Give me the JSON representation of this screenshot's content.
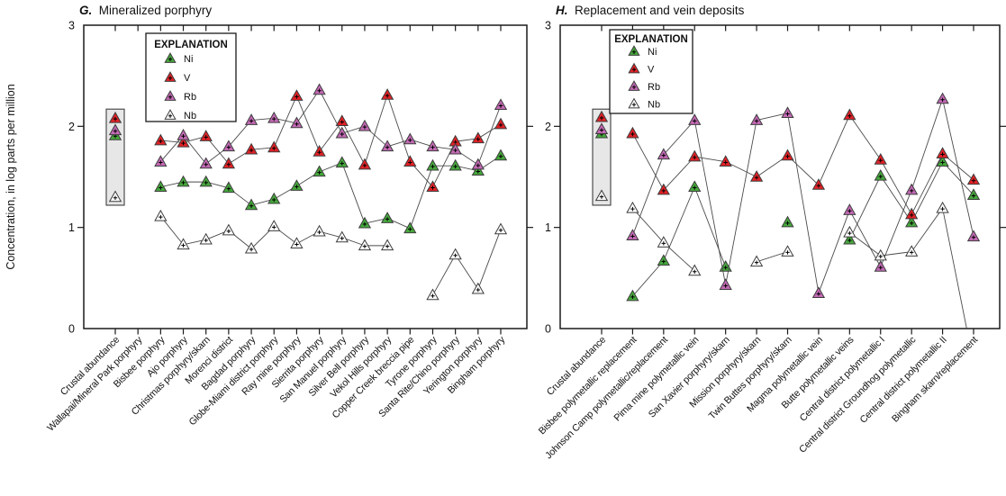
{
  "figure": {
    "y_axis_label": "Concentration, in log parts per million",
    "legend_title": "EXPLANATION",
    "line_color": "#4a4a4a",
    "marker_stroke": "#3c3c3c",
    "axis_color": "#1a1a1a",
    "reference_box_fill": "#e7e7e7",
    "reference_box_stroke": "#4d4d4d"
  },
  "chart_data": [
    {
      "type": "line",
      "panel_letter": "G.",
      "title": "Mineralized porphyry",
      "ylabel": "Concentration, in log parts per million",
      "ylim": [
        0,
        3
      ],
      "yticks": [
        0,
        1,
        2,
        3
      ],
      "grid": false,
      "legend_title": "EXPLANATION",
      "legend_position": "upper-left-inside",
      "reference_box": {
        "category_index": 0,
        "from": 1.22,
        "to": 2.17
      },
      "categories": [
        "Crustal abundance",
        "Wallapai/Mineral Park porphyry",
        "Bisbee porphyry",
        "Ajo porphyry",
        "Christmas porphyry/skarn",
        "Morenci district",
        "Bagdad porphyry",
        "Globe-Miami district porphyry",
        "Ray mine porphyry",
        "Sierrita porphyry",
        "San Manuel porphyry",
        "Silver Bell porphyry",
        "Vekol Hills porphyry",
        "Copper Creek breccia pipe",
        "Tyrone porphyry",
        "Santa Rite/Chino porphyry",
        "Yerington porphyry",
        "Bingham porphyry"
      ],
      "series": [
        {
          "name": "Ni",
          "color": "#46a83c",
          "values": [
            1.91,
            null,
            1.4,
            1.45,
            1.45,
            1.39,
            1.22,
            1.28,
            1.41,
            1.55,
            1.64,
            1.04,
            1.09,
            0.99,
            1.61,
            1.61,
            1.56,
            1.71
          ]
        },
        {
          "name": "V",
          "color": "#e22126",
          "values": [
            2.08,
            null,
            1.86,
            1.84,
            1.9,
            1.63,
            1.77,
            1.79,
            2.3,
            1.75,
            2.05,
            1.62,
            2.31,
            1.65,
            1.4,
            1.85,
            1.88,
            2.02
          ]
        },
        {
          "name": "Rb",
          "color": "#c369b4",
          "values": [
            1.96,
            null,
            1.65,
            1.91,
            1.63,
            1.8,
            2.06,
            2.08,
            2.03,
            2.36,
            1.93,
            2.0,
            1.8,
            1.87,
            1.8,
            1.77,
            1.62,
            2.21
          ]
        },
        {
          "name": "Nb",
          "color": "#ffffff",
          "values": [
            1.3,
            null,
            1.11,
            0.83,
            0.88,
            0.97,
            0.79,
            1.01,
            0.84,
            0.96,
            0.9,
            0.82,
            0.82,
            null,
            0.33,
            0.73,
            0.39,
            0.98
          ]
        }
      ]
    },
    {
      "type": "line",
      "panel_letter": "H.",
      "title": "Replacement and vein deposits",
      "ylabel": "",
      "ylim": [
        0,
        3
      ],
      "yticks": [
        0,
        1,
        2,
        3
      ],
      "grid": false,
      "legend_title": "EXPLANATION",
      "legend_position": "upper-left-inside",
      "reference_box": {
        "category_index": 0,
        "from": 1.22,
        "to": 2.17
      },
      "categories": [
        "Crustal abundance",
        "Bisbee polymetallic replacement",
        "Johnson Camp polymetallic/replacement",
        "Pima mine polymetallic vein",
        "San Xavier porphyry/skarn",
        "Mission porphyry/skarn",
        "Twin Buttes porphyry/skarn",
        "Magma polymetallic vein",
        "Butte polymetallic veins",
        "Central district polymetallic I",
        "Central district Groundhog polymetallic",
        "Central district polymetallic II",
        "Bingham skarn/replacement"
      ],
      "series": [
        {
          "name": "Ni",
          "color": "#46a83c",
          "values": [
            1.93,
            0.32,
            0.67,
            1.4,
            0.61,
            null,
            1.05,
            null,
            0.88,
            1.51,
            1.05,
            1.65,
            1.32
          ]
        },
        {
          "name": "V",
          "color": "#e22126",
          "values": [
            2.09,
            1.93,
            1.37,
            1.7,
            1.65,
            1.5,
            1.71,
            1.42,
            2.11,
            1.67,
            1.13,
            1.73,
            1.47
          ]
        },
        {
          "name": "Rb",
          "color": "#c369b4",
          "values": [
            1.97,
            0.92,
            1.72,
            2.06,
            0.43,
            2.06,
            2.13,
            0.35,
            1.17,
            0.61,
            1.37,
            2.27,
            0.91
          ]
        },
        {
          "name": "Nb",
          "color": "#ffffff",
          "values": [
            1.31,
            1.19,
            0.85,
            0.57,
            null,
            0.66,
            0.76,
            null,
            0.95,
            0.72,
            0.76,
            1.19,
            -0.34
          ]
        }
      ]
    }
  ]
}
